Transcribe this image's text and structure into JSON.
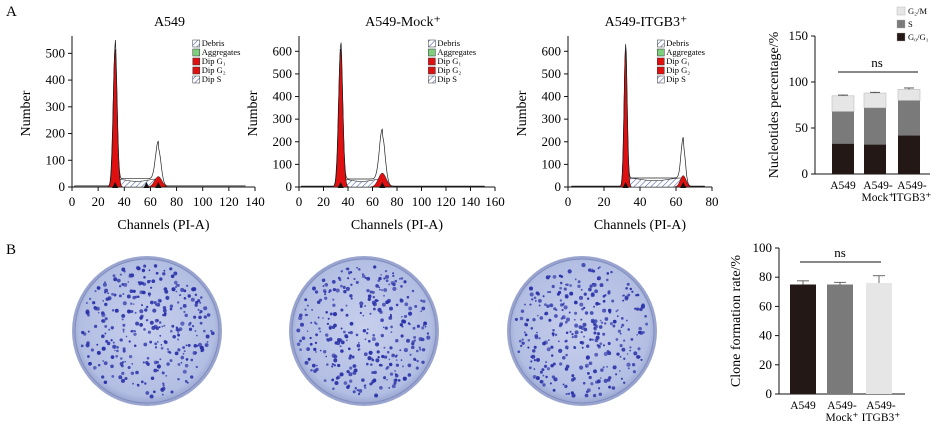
{
  "panels": {
    "a": "A",
    "b": "B"
  },
  "colors": {
    "g1_fill": "#e01010",
    "s_hatch": "#5566aa",
    "g0g1_bar": "#231815",
    "s_bar": "#7a7a7a",
    "g2m_bar": "#e6e6e6",
    "plate_fill": "#bcc6e6",
    "colony": "#2b33a8"
  },
  "flow_legend": {
    "items": [
      {
        "label": "Debris",
        "icon": "hatched-box"
      },
      {
        "label": "Aggregates",
        "icon": "green-box"
      },
      {
        "label": "Dip G₁",
        "icon": "red-box"
      },
      {
        "label": "Dip G₂",
        "icon": "red-box"
      },
      {
        "label": "Dip S",
        "icon": "hatched-box"
      }
    ]
  },
  "chart_data": [
    {
      "type": "histogram",
      "title": "A549",
      "xlabel": "Channels (PI-A)",
      "ylabel": "Number",
      "xlim": [
        0,
        140
      ],
      "ylim": [
        0,
        550
      ],
      "xticks": [
        0,
        20,
        40,
        60,
        80,
        100,
        120,
        140
      ],
      "yticks": [
        0,
        100,
        200,
        300,
        400,
        500
      ],
      "peaks": {
        "g1_channel": 33,
        "g1_height": 515,
        "g2_channel": 66,
        "g2_height": 140,
        "s_plateau": 30
      },
      "markers": [
        33,
        57,
        66
      ]
    },
    {
      "type": "histogram",
      "title": "A549-Mock⁺",
      "xlabel": "Channels (PI-A)",
      "ylabel": "Number",
      "xlim": [
        0,
        160
      ],
      "ylim": [
        0,
        650
      ],
      "xticks": [
        0,
        20,
        40,
        60,
        80,
        100,
        120,
        140,
        160
      ],
      "xtick_labels": [
        "0",
        "20",
        "40",
        "60",
        "80",
        "100",
        "120",
        "140",
        "160"
      ],
      "yticks": [
        0,
        100,
        200,
        300,
        400,
        500,
        600
      ],
      "peaks": {
        "g1_channel": 34,
        "g1_height": 610,
        "g2_channel": 68,
        "g2_height": 220,
        "s_plateau": 35
      },
      "markers": [
        34,
        68
      ]
    },
    {
      "type": "histogram",
      "title": "A549-ITGB3⁺",
      "xlabel": "Channels (PI-A)",
      "ylabel": "Number",
      "xlim": [
        0,
        80
      ],
      "ylim": [
        0,
        650
      ],
      "xticks": [
        0,
        20,
        40,
        60,
        80
      ],
      "yticks": [
        0,
        100,
        200,
        300,
        400,
        500,
        600
      ],
      "peaks": {
        "g1_channel": 32,
        "g1_height": 615,
        "g2_channel": 64,
        "g2_height": 180,
        "s_plateau": 40
      },
      "markers": [
        32,
        64
      ]
    },
    {
      "type": "bar",
      "stacked": true,
      "ylabel": "Nucleotides percentage/%",
      "ylim": [
        0,
        150
      ],
      "yticks": [
        0,
        50,
        100,
        150
      ],
      "categories": [
        "A549",
        "A549-Mock⁺",
        "A549-ITGB3⁺"
      ],
      "series": [
        {
          "name": "G₀/G₁",
          "values": [
            33,
            32,
            42
          ],
          "errors": [
            1.5,
            1,
            4
          ]
        },
        {
          "name": "S",
          "values": [
            35,
            40,
            38
          ],
          "errors": [
            1,
            1,
            2
          ]
        },
        {
          "name": "G₂/M",
          "values": [
            17,
            16,
            12
          ],
          "errors": [
            0.8,
            0.8,
            1.5
          ]
        }
      ],
      "legend": [
        "G₂/M",
        "S",
        "G₀/G₁"
      ],
      "legend_position": "top-right",
      "significance": "ns"
    },
    {
      "type": "bar",
      "ylabel": "Clone formation rate/%",
      "ylim": [
        0,
        100
      ],
      "yticks": [
        0,
        20,
        40,
        60,
        80,
        100
      ],
      "categories": [
        "A549",
        "A549-Mock⁺",
        "A549-ITGB3⁺"
      ],
      "values": [
        75,
        75,
        76
      ],
      "errors": [
        2.5,
        1.5,
        5
      ],
      "significance": "ns"
    }
  ]
}
